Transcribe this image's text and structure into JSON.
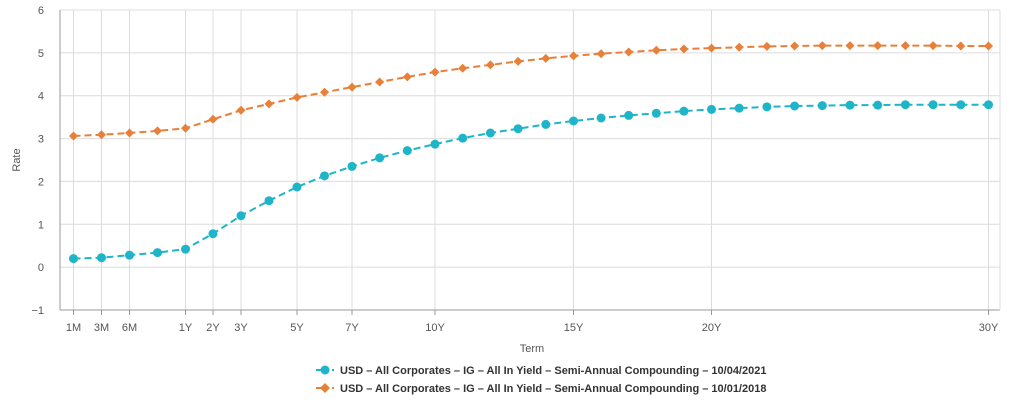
{
  "chart_data": {
    "type": "line",
    "title": "",
    "xlabel": "Term",
    "ylabel": "Rate",
    "ylim": [
      -1,
      6
    ],
    "xlim": [
      0,
      30
    ],
    "yticks": [
      -1,
      0,
      1,
      2,
      3,
      4,
      5,
      6
    ],
    "xticks": [
      {
        "label": "1M",
        "value": 0.0833
      },
      {
        "label": "3M",
        "value": 0.25
      },
      {
        "label": "6M",
        "value": 0.5
      },
      {
        "label": "1Y",
        "value": 1
      },
      {
        "label": "2Y",
        "value": 2
      },
      {
        "label": "3Y",
        "value": 3
      },
      {
        "label": "5Y",
        "value": 5
      },
      {
        "label": "7Y",
        "value": 7
      },
      {
        "label": "10Y",
        "value": 10
      },
      {
        "label": "15Y",
        "value": 15
      },
      {
        "label": "20Y",
        "value": 20
      },
      {
        "label": "30Y",
        "value": 30
      }
    ],
    "grid": true,
    "legend_position": "bottom",
    "x": [
      0.0833,
      0.25,
      0.5,
      0.75,
      1,
      2,
      3,
      4,
      5,
      6,
      7,
      8,
      9,
      10,
      11,
      12,
      13,
      14,
      15,
      16,
      17,
      18,
      19,
      20,
      21,
      22,
      23,
      24,
      25,
      26,
      27,
      28,
      29,
      30
    ],
    "series": [
      {
        "name": "USD – All Corporates – IG – All In Yield – Semi-Annual Compounding – 10/04/2021",
        "color": "#1fb5c9",
        "marker": "circle",
        "values": [
          0.2,
          0.22,
          0.28,
          0.34,
          0.42,
          0.78,
          1.2,
          1.55,
          1.87,
          2.13,
          2.35,
          2.55,
          2.72,
          2.87,
          3.01,
          3.13,
          3.23,
          3.33,
          3.41,
          3.48,
          3.54,
          3.59,
          3.64,
          3.68,
          3.71,
          3.74,
          3.76,
          3.77,
          3.78,
          3.78,
          3.79,
          3.79,
          3.79,
          3.79
        ]
      },
      {
        "name": "USD – All Corporates – IG – All In Yield – Semi-Annual Compounding – 10/01/2018",
        "color": "#e8803a",
        "marker": "diamond",
        "values": [
          3.06,
          3.09,
          3.13,
          3.18,
          3.24,
          3.45,
          3.66,
          3.81,
          3.96,
          4.08,
          4.2,
          4.32,
          4.44,
          4.55,
          4.64,
          4.72,
          4.8,
          4.87,
          4.93,
          4.98,
          5.02,
          5.06,
          5.09,
          5.11,
          5.13,
          5.15,
          5.16,
          5.17,
          5.17,
          5.17,
          5.17,
          5.17,
          5.16,
          5.16
        ]
      }
    ]
  }
}
